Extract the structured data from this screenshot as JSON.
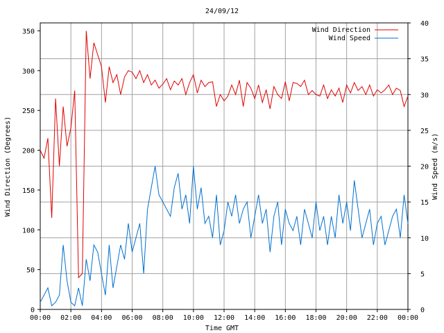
{
  "chart_data": {
    "type": "line",
    "title": "24/09/12",
    "xlabel": "Time GMT",
    "ylabel_left": "Wind Direction (Degrees)",
    "ylabel_right": "Wind Speed (m/s)",
    "x_ticks": [
      "00:00",
      "02:00",
      "04:00",
      "06:00",
      "08:00",
      "10:00",
      "12:00",
      "14:00",
      "16:00",
      "18:00",
      "20:00",
      "22:00",
      "00:00"
    ],
    "x_range_hours": [
      0,
      24
    ],
    "y_left_range": [
      0,
      360
    ],
    "y_left_ticks": [
      0,
      50,
      100,
      150,
      200,
      250,
      300,
      350
    ],
    "y_right_range": [
      0,
      40
    ],
    "y_right_ticks": [
      0,
      5,
      10,
      15,
      20,
      25,
      30,
      35,
      40
    ],
    "grid": true,
    "legend_position": "top-right",
    "series": [
      {
        "name": "Wind Direction",
        "axis": "left",
        "color": "#e00000",
        "x": [
          0,
          0.25,
          0.5,
          0.75,
          1,
          1.25,
          1.5,
          1.75,
          2,
          2.25,
          2.5,
          2.75,
          3,
          3.25,
          3.5,
          3.75,
          4,
          4.25,
          4.5,
          4.75,
          5,
          5.25,
          5.5,
          5.75,
          6,
          6.25,
          6.5,
          6.75,
          7,
          7.25,
          7.5,
          7.75,
          8,
          8.25,
          8.5,
          8.75,
          9,
          9.25,
          9.5,
          9.75,
          10,
          10.25,
          10.5,
          10.75,
          11,
          11.25,
          11.5,
          11.75,
          12,
          12.25,
          12.5,
          12.75,
          13,
          13.25,
          13.5,
          13.75,
          14,
          14.25,
          14.5,
          14.75,
          15,
          15.25,
          15.5,
          15.75,
          16,
          16.25,
          16.5,
          16.75,
          17,
          17.25,
          17.5,
          17.75,
          18,
          18.25,
          18.5,
          18.75,
          19,
          19.25,
          19.5,
          19.75,
          20,
          20.25,
          20.5,
          20.75,
          21,
          21.25,
          21.5,
          21.75,
          22,
          22.25,
          22.5,
          22.75,
          23,
          23.25,
          23.5,
          23.75,
          24
        ],
        "values": [
          200,
          190,
          215,
          115,
          265,
          180,
          255,
          205,
          228,
          275,
          40,
          45,
          350,
          290,
          335,
          320,
          305,
          260,
          305,
          285,
          295,
          270,
          292,
          300,
          298,
          290,
          300,
          285,
          295,
          282,
          288,
          278,
          283,
          290,
          276,
          287,
          282,
          290,
          270,
          285,
          295,
          272,
          288,
          280,
          285,
          286,
          255,
          270,
          262,
          268,
          282,
          270,
          288,
          255,
          285,
          278,
          265,
          282,
          260,
          276,
          252,
          280,
          270,
          265,
          286,
          262,
          285,
          284,
          280,
          288,
          270,
          275,
          270,
          268,
          282,
          265,
          276,
          268,
          278,
          260,
          282,
          272,
          285,
          275,
          280,
          270,
          282,
          268,
          276,
          272,
          276,
          282,
          270,
          278,
          275,
          255,
          268
        ]
      },
      {
        "name": "Wind Speed",
        "axis": "right",
        "color": "#0070d0",
        "x": [
          0,
          0.25,
          0.5,
          0.75,
          1,
          1.25,
          1.5,
          1.75,
          2,
          2.25,
          2.5,
          2.75,
          3,
          3.25,
          3.5,
          3.75,
          4,
          4.25,
          4.5,
          4.75,
          5,
          5.25,
          5.5,
          5.75,
          6,
          6.25,
          6.5,
          6.75,
          7,
          7.25,
          7.5,
          7.75,
          8,
          8.25,
          8.5,
          8.75,
          9,
          9.25,
          9.5,
          9.75,
          10,
          10.25,
          10.5,
          10.75,
          11,
          11.25,
          11.5,
          11.75,
          12,
          12.25,
          12.5,
          12.75,
          13,
          13.25,
          13.5,
          13.75,
          14,
          14.25,
          14.5,
          14.75,
          15,
          15.25,
          15.5,
          15.75,
          16,
          16.25,
          16.5,
          16.75,
          17,
          17.25,
          17.5,
          17.75,
          18,
          18.25,
          18.5,
          18.75,
          19,
          19.25,
          19.5,
          19.75,
          20,
          20.25,
          20.5,
          20.75,
          21,
          21.25,
          21.5,
          21.75,
          22,
          22.25,
          22.5,
          22.75,
          23,
          23.25,
          23.5,
          23.75,
          24
        ],
        "values": [
          1,
          2,
          3,
          0.5,
          1,
          2,
          9,
          4,
          1,
          0.5,
          3,
          0.5,
          7,
          4,
          9,
          8,
          5,
          2,
          9,
          3,
          6,
          9,
          7,
          12,
          8,
          10,
          12,
          5,
          14,
          17,
          20,
          16,
          15,
          14,
          13,
          17,
          19,
          14,
          16,
          12,
          20,
          14,
          17,
          12,
          13,
          10,
          16,
          9,
          11,
          15,
          13,
          16,
          12,
          14,
          15,
          10,
          13,
          16,
          12,
          14,
          8,
          13,
          15,
          9,
          14,
          12,
          11,
          13,
          9,
          14,
          12,
          10,
          15,
          11,
          13,
          9,
          13,
          10,
          16,
          12,
          15,
          11,
          18,
          14,
          10,
          12,
          14,
          9,
          12,
          13,
          9,
          11,
          13,
          14,
          10,
          16,
          12
        ]
      }
    ]
  }
}
